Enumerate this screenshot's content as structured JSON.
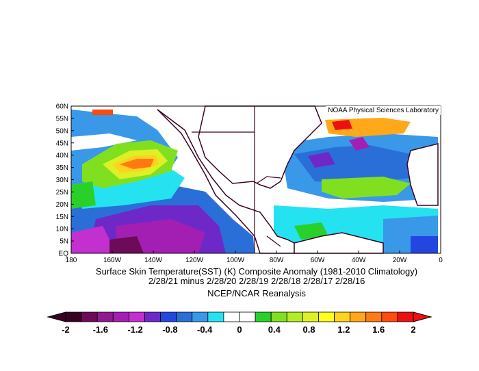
{
  "credit": "NOAA Physical Sciences Laboratory",
  "title_line1": "Surface Skin Temperature(SST) (K) Composite Anomaly (1981-2010 Climatology)",
  "title_line2": "2/28/21 minus 2/28/20 2/28/19 2/28/18 2/28/17 2/28/16",
  "source": "NCEP/NCAR Reanalysis",
  "lat_labels": [
    "60N",
    "55N",
    "50N",
    "45N",
    "40N",
    "35N",
    "30N",
    "25N",
    "20N",
    "15N",
    "10N",
    "5N",
    "EQ"
  ],
  "lon_labels": [
    "180",
    "160W",
    "140W",
    "120W",
    "100W",
    "80W",
    "60W",
    "40W",
    "20W",
    "0"
  ],
  "colorbar": {
    "colors": [
      "#3a0024",
      "#6e0a5a",
      "#8f1b8f",
      "#a31fb4",
      "#c42fd0",
      "#6f28c8",
      "#2446e0",
      "#2a6fd8",
      "#3a98e8",
      "#24e2f0",
      "#ffffff",
      "#ffffff",
      "#2ad02a",
      "#80e020",
      "#b4ec26",
      "#dcf025",
      "#ffff22",
      "#ffd21e",
      "#ffa81a",
      "#ff7a14",
      "#ff4a10",
      "#ee1010"
    ],
    "labels": [
      "-2",
      "-1.6",
      "-1.2",
      "-0.8",
      "-0.4",
      "0",
      "0.4",
      "0.8",
      "1.2",
      "1.6",
      "2"
    ]
  }
}
